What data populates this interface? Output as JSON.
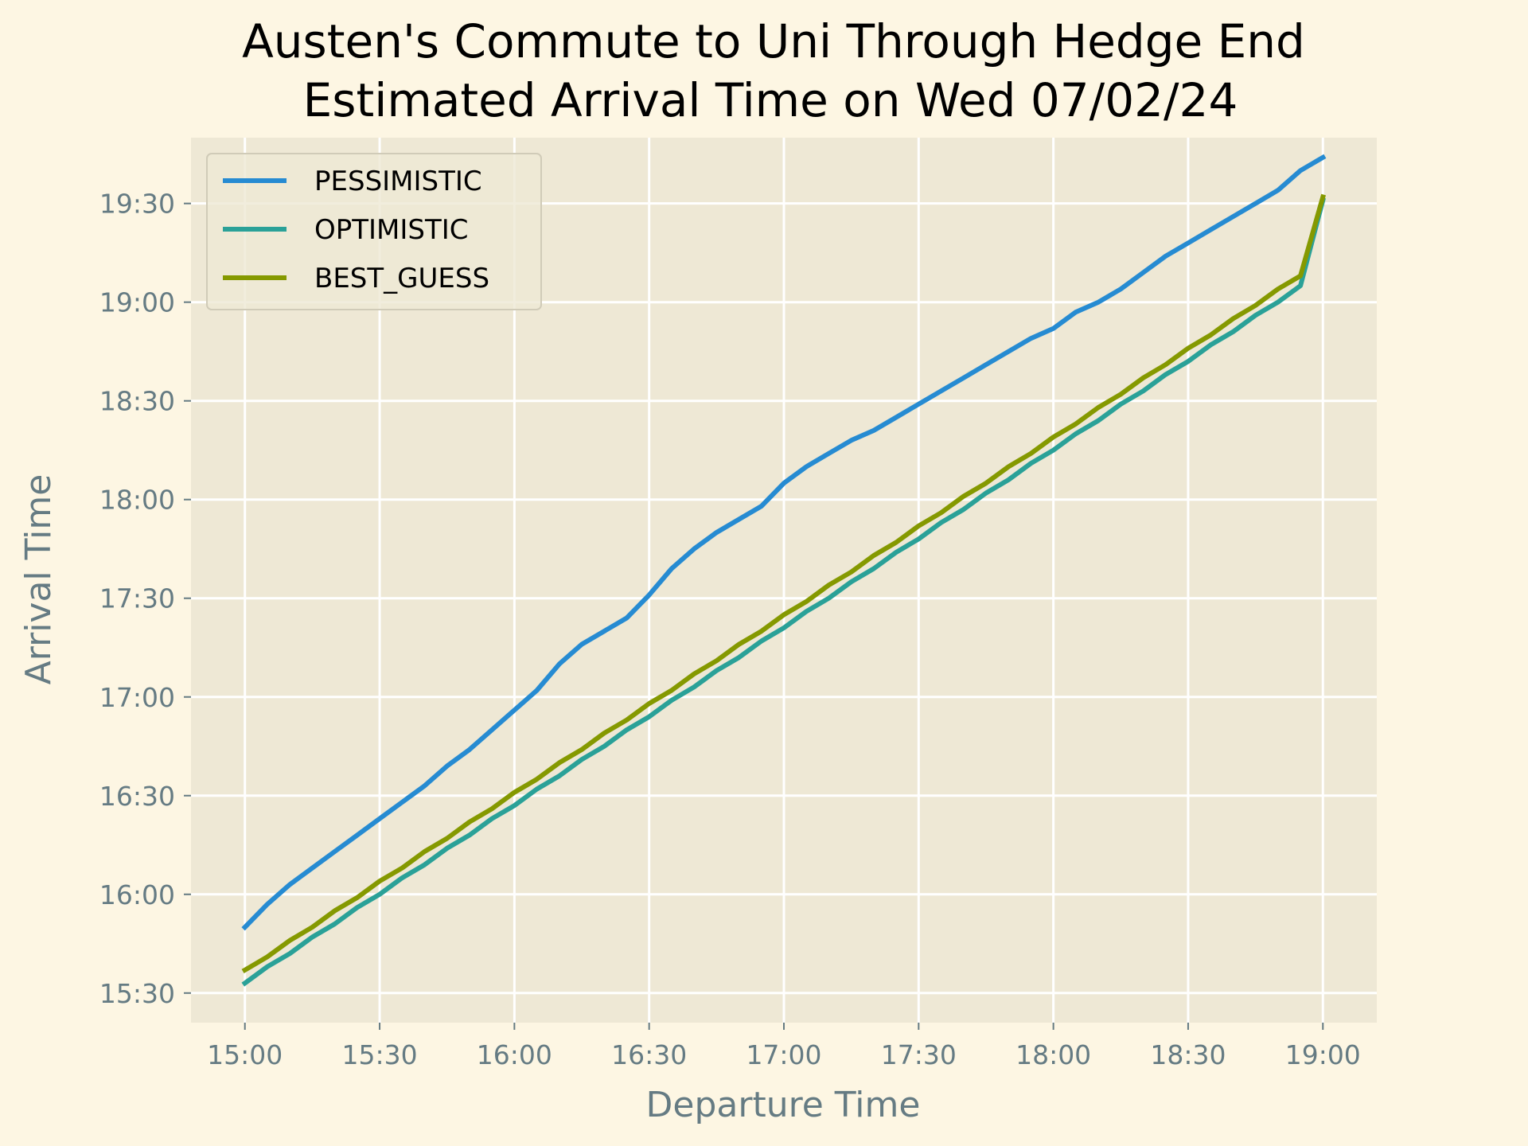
{
  "colors": {
    "page_bg": "#fdf6e3",
    "plot_bg": "#eee8d5",
    "grid": "#ffffff",
    "text_muted": "#657b83"
  },
  "chart_data": {
    "type": "line",
    "title": "Austen's Commute to Uni Through Hedge End",
    "subtitle": "Estimated Arrival Time on Wed 07/02/24",
    "xlabel": "Departure Time",
    "ylabel": "Arrival Time",
    "xlim": [
      "14:48",
      "19:12"
    ],
    "ylim": [
      "15:21",
      "19:50"
    ],
    "x_ticks": [
      "15:00",
      "15:30",
      "16:00",
      "16:30",
      "17:00",
      "17:30",
      "18:00",
      "18:30",
      "19:00"
    ],
    "y_ticks": [
      "15:30",
      "16:00",
      "16:30",
      "17:00",
      "17:30",
      "18:00",
      "18:30",
      "19:00",
      "19:30"
    ],
    "grid": true,
    "legend_position": "top-left",
    "series": [
      {
        "name": "PESSIMISTIC",
        "color": "#268bd2",
        "x": [
          "15:00",
          "15:05",
          "15:10",
          "15:15",
          "15:20",
          "15:25",
          "15:30",
          "15:35",
          "15:40",
          "15:45",
          "15:50",
          "15:55",
          "16:00",
          "16:05",
          "16:10",
          "16:15",
          "16:20",
          "16:25",
          "16:30",
          "16:35",
          "16:40",
          "16:45",
          "16:50",
          "16:55",
          "17:00",
          "17:05",
          "17:10",
          "17:15",
          "17:20",
          "17:25",
          "17:30",
          "17:35",
          "17:40",
          "17:45",
          "17:50",
          "17:55",
          "18:00",
          "18:05",
          "18:10",
          "18:15",
          "18:20",
          "18:25",
          "18:30",
          "18:35",
          "18:40",
          "18:45",
          "18:50",
          "18:55",
          "19:00"
        ],
        "y": [
          "15:50",
          "15:57",
          "16:03",
          "16:08",
          "16:13",
          "16:18",
          "16:23",
          "16:28",
          "16:33",
          "16:39",
          "16:44",
          "16:50",
          "16:56",
          "17:02",
          "17:10",
          "17:16",
          "17:20",
          "17:24",
          "17:31",
          "17:39",
          "17:45",
          "17:50",
          "17:54",
          "17:58",
          "18:05",
          "18:10",
          "18:14",
          "18:18",
          "18:21",
          "18:25",
          "18:29",
          "18:33",
          "18:37",
          "18:41",
          "18:45",
          "18:49",
          "18:52",
          "18:57",
          "19:00",
          "19:04",
          "19:09",
          "19:14",
          "19:18",
          "19:22",
          "19:26",
          "19:30",
          "19:34",
          "19:40",
          "19:44"
        ]
      },
      {
        "name": "OPTIMISTIC",
        "color": "#2aa198",
        "x": [
          "15:00",
          "15:05",
          "15:10",
          "15:15",
          "15:20",
          "15:25",
          "15:30",
          "15:35",
          "15:40",
          "15:45",
          "15:50",
          "15:55",
          "16:00",
          "16:05",
          "16:10",
          "16:15",
          "16:20",
          "16:25",
          "16:30",
          "16:35",
          "16:40",
          "16:45",
          "16:50",
          "16:55",
          "17:00",
          "17:05",
          "17:10",
          "17:15",
          "17:20",
          "17:25",
          "17:30",
          "17:35",
          "17:40",
          "17:45",
          "17:50",
          "17:55",
          "18:00",
          "18:05",
          "18:10",
          "18:15",
          "18:20",
          "18:25",
          "18:30",
          "18:35",
          "18:40",
          "18:45",
          "18:50",
          "18:55",
          "19:00"
        ],
        "y": [
          "15:33",
          "15:38",
          "15:42",
          "15:47",
          "15:51",
          "15:56",
          "16:00",
          "16:05",
          "16:09",
          "16:14",
          "16:18",
          "16:23",
          "16:27",
          "16:32",
          "16:36",
          "16:41",
          "16:45",
          "16:50",
          "16:54",
          "16:59",
          "17:03",
          "17:08",
          "17:12",
          "17:17",
          "17:21",
          "17:26",
          "17:30",
          "17:35",
          "17:39",
          "17:44",
          "17:48",
          "17:53",
          "17:57",
          "18:02",
          "18:06",
          "18:11",
          "18:15",
          "18:20",
          "18:24",
          "18:29",
          "18:33",
          "18:38",
          "18:42",
          "18:47",
          "18:51",
          "18:56",
          "19:00",
          "19:05",
          "19:31"
        ]
      },
      {
        "name": "BEST_GUESS",
        "color": "#859900",
        "x": [
          "15:00",
          "15:05",
          "15:10",
          "15:15",
          "15:20",
          "15:25",
          "15:30",
          "15:35",
          "15:40",
          "15:45",
          "15:50",
          "15:55",
          "16:00",
          "16:05",
          "16:10",
          "16:15",
          "16:20",
          "16:25",
          "16:30",
          "16:35",
          "16:40",
          "16:45",
          "16:50",
          "16:55",
          "17:00",
          "17:05",
          "17:10",
          "17:15",
          "17:20",
          "17:25",
          "17:30",
          "17:35",
          "17:40",
          "17:45",
          "17:50",
          "17:55",
          "18:00",
          "18:05",
          "18:10",
          "18:15",
          "18:20",
          "18:25",
          "18:30",
          "18:35",
          "18:40",
          "18:45",
          "18:50",
          "18:55",
          "19:00"
        ],
        "y": [
          "15:37",
          "15:41",
          "15:46",
          "15:50",
          "15:55",
          "15:59",
          "16:04",
          "16:08",
          "16:13",
          "16:17",
          "16:22",
          "16:26",
          "16:31",
          "16:35",
          "16:40",
          "16:44",
          "16:49",
          "16:53",
          "16:58",
          "17:02",
          "17:07",
          "17:11",
          "17:16",
          "17:20",
          "17:25",
          "17:29",
          "17:34",
          "17:38",
          "17:43",
          "17:47",
          "17:52",
          "17:56",
          "18:01",
          "18:05",
          "18:10",
          "18:14",
          "18:19",
          "18:23",
          "18:28",
          "18:32",
          "18:37",
          "18:41",
          "18:46",
          "18:50",
          "18:55",
          "18:59",
          "19:04",
          "19:08",
          "19:32"
        ]
      }
    ]
  }
}
